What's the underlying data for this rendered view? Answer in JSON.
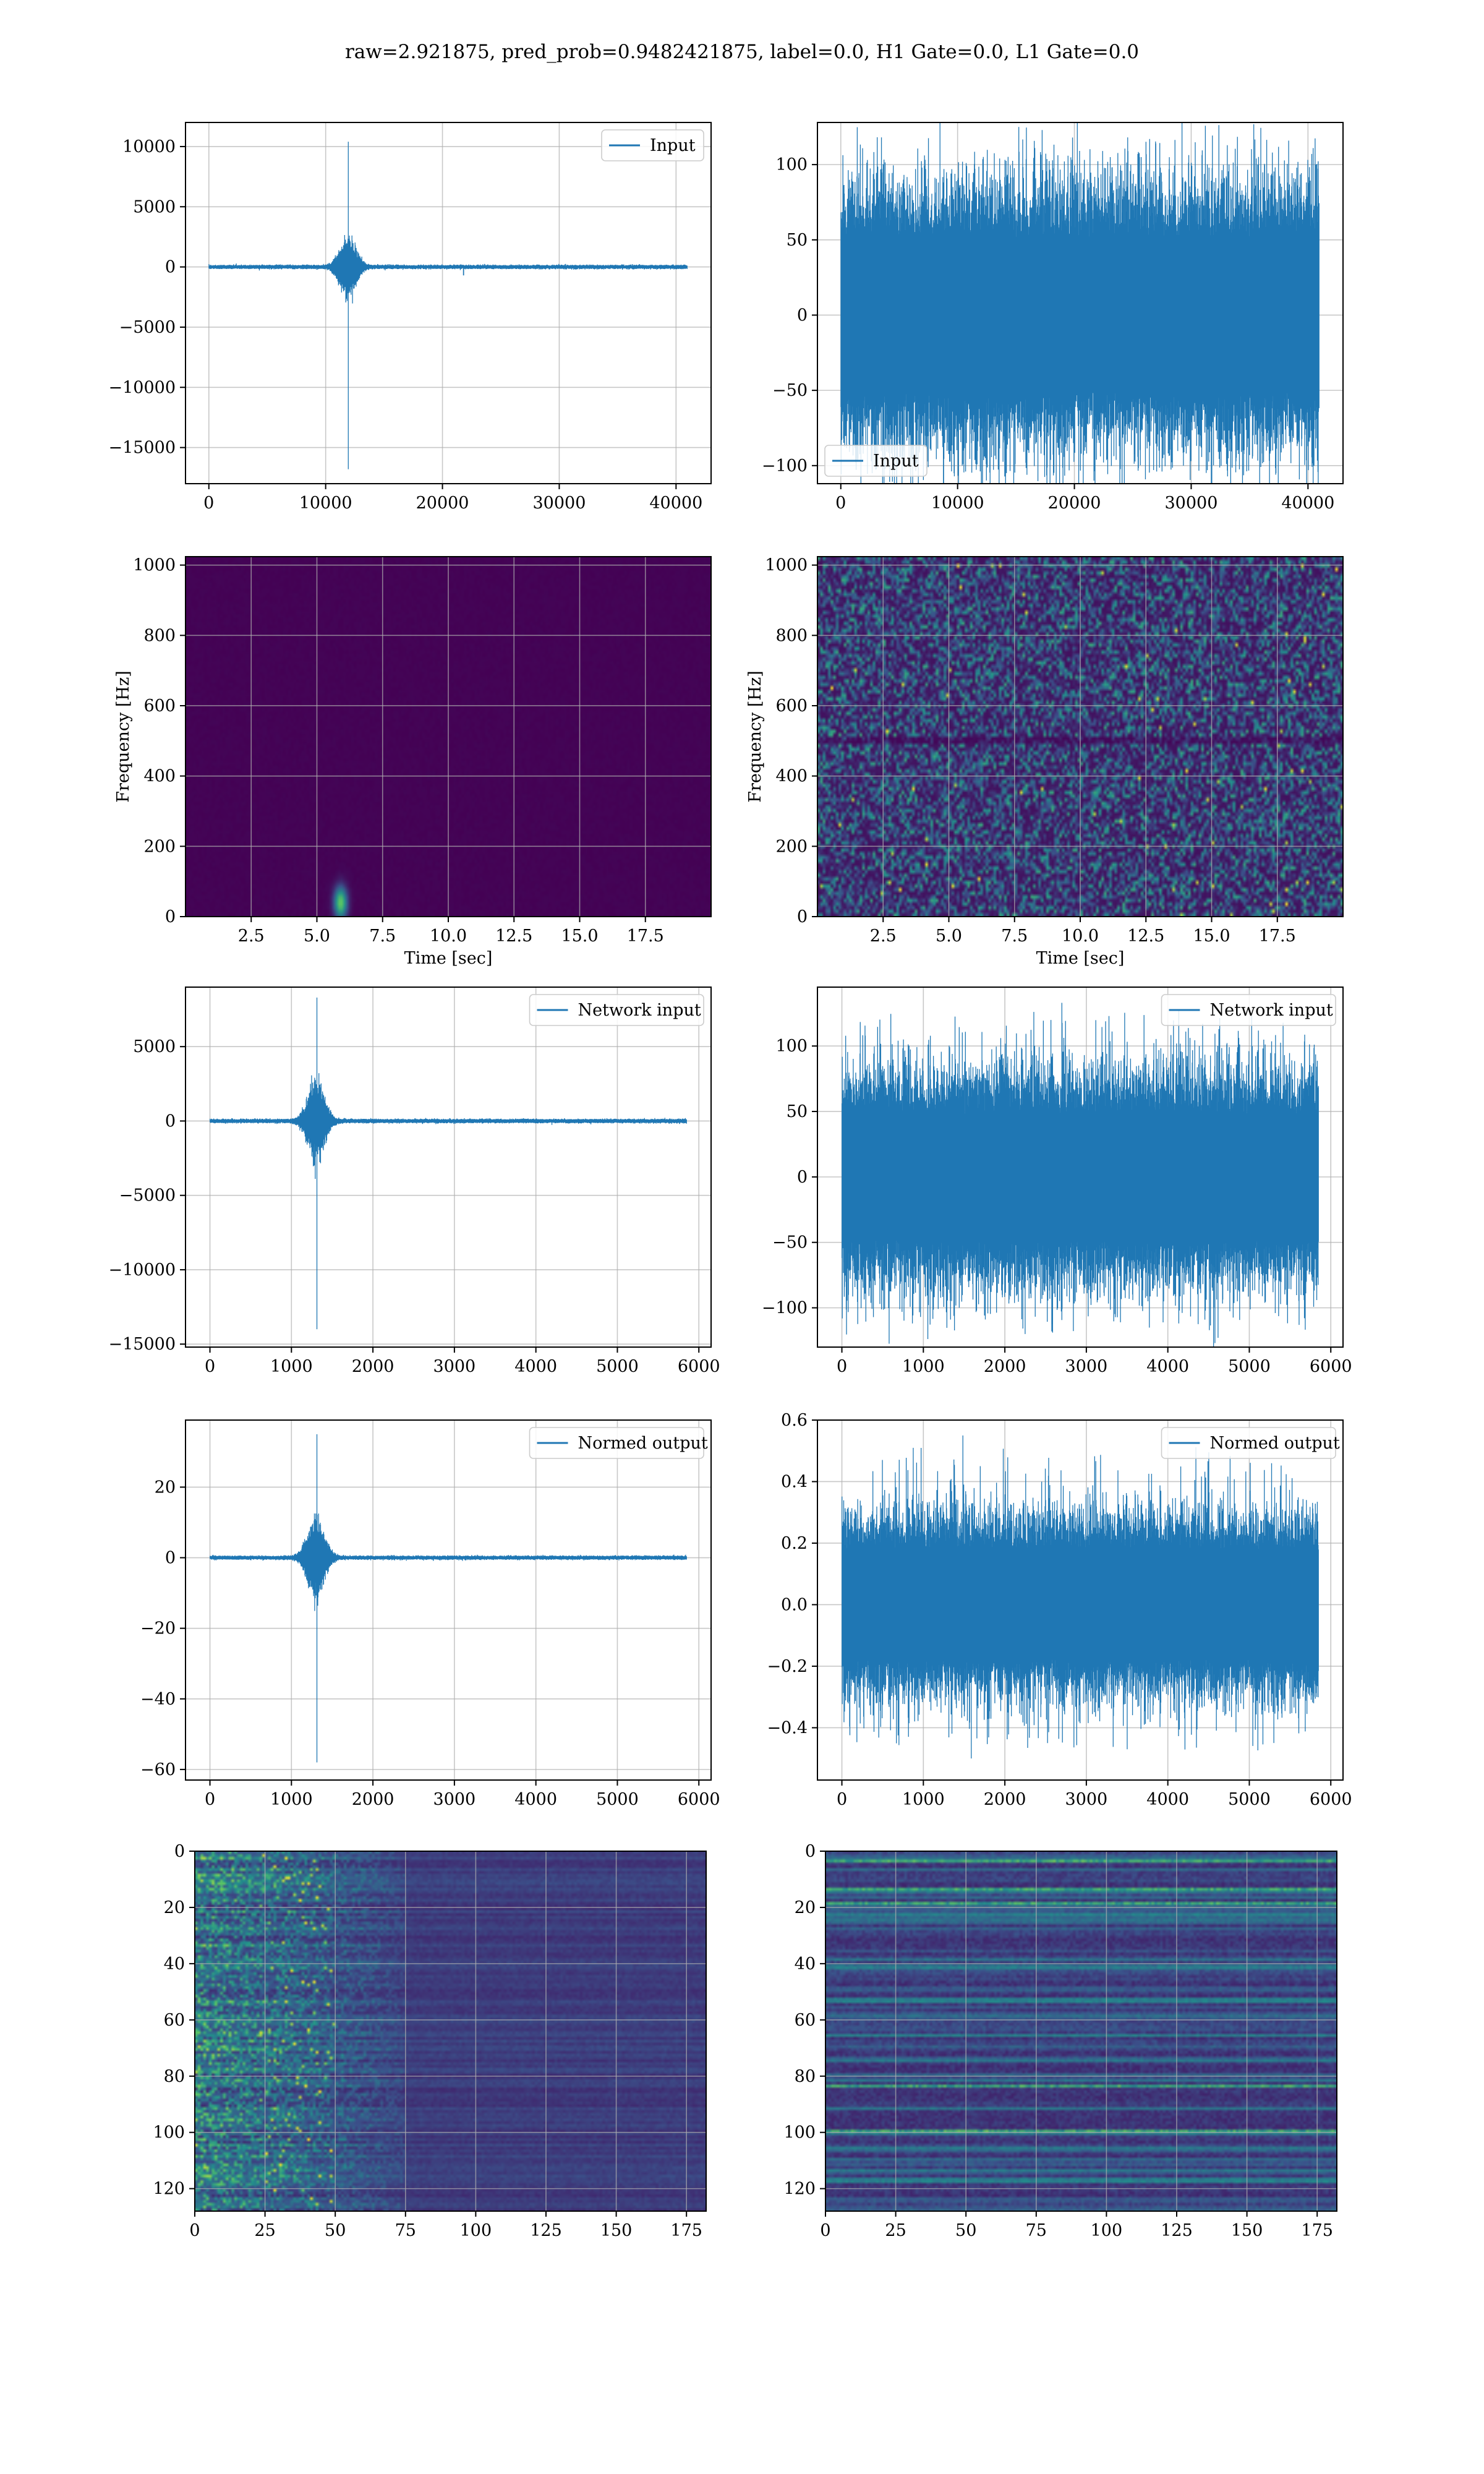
{
  "title": "raw=2.921875, pred_prob=0.9482421875, label=0.0, H1 Gate=0.0, L1 Gate=0.0",
  "colors": {
    "line": "#1f77b4",
    "grid": "#b0b0b0",
    "viridis_low": "#440154",
    "viridis_high": "#fde725"
  },
  "chart_data": [
    {
      "id": "r1-left",
      "type": "line",
      "series": [
        {
          "name": "Input"
        }
      ],
      "legend_loc": "upper right",
      "xlim": [
        -2000,
        43000
      ],
      "ylim": [
        -18000,
        12000
      ],
      "xticks": [
        0,
        10000,
        20000,
        30000,
        40000
      ],
      "xtick_labels": [
        "0",
        "10000",
        "20000",
        "30000",
        "40000"
      ],
      "yticks": [
        10000,
        5000,
        0,
        -5000,
        -10000,
        -15000
      ],
      "ytick_labels": [
        "10000",
        "5000",
        "0",
        "−5000",
        "−10000",
        "−15000"
      ],
      "signal": {
        "length": 40960,
        "noise_amp": 60,
        "burst_center": 11900,
        "burst_width": 900,
        "burst_amp": 900,
        "spike_at": 11920,
        "spike_max": 10400,
        "spike_min": -16800,
        "small_dip_at": 21800,
        "small_dip": -700
      }
    },
    {
      "id": "r1-right",
      "type": "line",
      "series": [
        {
          "name": "Input"
        }
      ],
      "legend_loc": "lower left",
      "xlim": [
        -2000,
        43000
      ],
      "ylim": [
        -112,
        128
      ],
      "xticks": [
        0,
        10000,
        20000,
        30000,
        40000
      ],
      "xtick_labels": [
        "0",
        "10000",
        "20000",
        "30000",
        "40000"
      ],
      "yticks": [
        100,
        50,
        0,
        -50,
        -100
      ],
      "ytick_labels": [
        "100",
        "50",
        "0",
        "−50",
        "−100"
      ],
      "signal": {
        "length": 40960,
        "noise_amp": 32,
        "peak_max": 125,
        "peak_min": -110
      }
    },
    {
      "id": "r2-left",
      "type": "heatmap",
      "xlabel": "Time [sec]",
      "ylabel": "Frequency [Hz]",
      "xlim": [
        0,
        20
      ],
      "ylim": [
        0,
        1024
      ],
      "xticks": [
        2.5,
        5.0,
        7.5,
        10.0,
        12.5,
        15.0,
        17.5
      ],
      "xtick_labels": [
        "2.5",
        "5.0",
        "7.5",
        "10.0",
        "12.5",
        "15.0",
        "17.5"
      ],
      "yticks": [
        0,
        200,
        400,
        600,
        800,
        1000
      ],
      "ytick_labels": [
        "0",
        "200",
        "400",
        "600",
        "800",
        "1000"
      ],
      "blob": {
        "time": 5.9,
        "freq": 40
      }
    },
    {
      "id": "r2-right",
      "type": "heatmap",
      "xlabel": "Time [sec]",
      "ylabel": "Frequency [Hz]",
      "xlim": [
        0,
        20
      ],
      "ylim": [
        0,
        1024
      ],
      "xticks": [
        2.5,
        5.0,
        7.5,
        10.0,
        12.5,
        15.0,
        17.5
      ],
      "xtick_labels": [
        "2.5",
        "5.0",
        "7.5",
        "10.0",
        "12.5",
        "15.0",
        "17.5"
      ],
      "yticks": [
        0,
        200,
        400,
        600,
        800,
        1000
      ],
      "ytick_labels": [
        "0",
        "200",
        "400",
        "600",
        "800",
        "1000"
      ],
      "dark_band_freq": 500
    },
    {
      "id": "r3-left",
      "type": "line",
      "series": [
        {
          "name": "Network input"
        }
      ],
      "legend_loc": "upper right",
      "xlim": [
        -300,
        6150
      ],
      "ylim": [
        -15200,
        9000
      ],
      "xticks": [
        0,
        1000,
        2000,
        3000,
        4000,
        5000,
        6000
      ],
      "xtick_labels": [
        "0",
        "1000",
        "2000",
        "3000",
        "4000",
        "5000",
        "6000"
      ],
      "yticks": [
        5000,
        0,
        -5000,
        -10000,
        -15000
      ],
      "ytick_labels": [
        "5000",
        "0",
        "−5000",
        "−10000",
        "−15000"
      ],
      "signal": {
        "length": 5850,
        "noise_amp": 50,
        "burst_center": 1300,
        "burst_width": 140,
        "burst_amp": 900,
        "spike_at": 1310,
        "spike_max": 8300,
        "spike_min": -14000
      }
    },
    {
      "id": "r3-right",
      "type": "line",
      "series": [
        {
          "name": "Network input"
        }
      ],
      "legend_loc": "upper right",
      "xlim": [
        -300,
        6150
      ],
      "ylim": [
        -130,
        145
      ],
      "xticks": [
        0,
        1000,
        2000,
        3000,
        4000,
        5000,
        6000
      ],
      "xtick_labels": [
        "0",
        "1000",
        "2000",
        "3000",
        "4000",
        "5000",
        "6000"
      ],
      "yticks": [
        100,
        50,
        0,
        -50,
        -100
      ],
      "ytick_labels": [
        "100",
        "50",
        "0",
        "−50",
        "−100"
      ],
      "signal": {
        "length": 5850,
        "noise_amp": 30,
        "peak_max": 133,
        "peak_min": -120
      }
    },
    {
      "id": "r4-left",
      "type": "line",
      "series": [
        {
          "name": "Normed output"
        }
      ],
      "legend_loc": "upper right",
      "xlim": [
        -300,
        6150
      ],
      "ylim": [
        -63,
        39
      ],
      "xticks": [
        0,
        1000,
        2000,
        3000,
        4000,
        5000,
        6000
      ],
      "xtick_labels": [
        "0",
        "1000",
        "2000",
        "3000",
        "4000",
        "5000",
        "6000"
      ],
      "yticks": [
        20,
        0,
        -20,
        -40,
        -60
      ],
      "ytick_labels": [
        "20",
        "0",
        "−20",
        "−40",
        "−60"
      ],
      "signal": {
        "length": 5850,
        "noise_amp": 0.2,
        "burst_center": 1300,
        "burst_width": 140,
        "burst_amp": 4,
        "spike_at": 1310,
        "spike_max": 35,
        "spike_min": -58
      }
    },
    {
      "id": "r4-right",
      "type": "line",
      "series": [
        {
          "name": "Normed output"
        }
      ],
      "legend_loc": "upper right",
      "xlim": [
        -300,
        6150
      ],
      "ylim": [
        -0.57,
        0.6
      ],
      "xticks": [
        0,
        1000,
        2000,
        3000,
        4000,
        5000,
        6000
      ],
      "xtick_labels": [
        "0",
        "1000",
        "2000",
        "3000",
        "4000",
        "5000",
        "6000"
      ],
      "yticks": [
        0.6,
        0.4,
        0.2,
        0.0,
        -0.2,
        -0.4
      ],
      "ytick_labels": [
        "0.6",
        "0.4",
        "0.2",
        "0.0",
        "−0.2",
        "−0.4"
      ],
      "signal": {
        "length": 5850,
        "noise_amp": 0.11,
        "peak_max": 0.55,
        "peak_min": -0.5
      }
    },
    {
      "id": "r5-left",
      "type": "heatmap",
      "xlim": [
        0,
        182
      ],
      "ylim": [
        128,
        0
      ],
      "xticks": [
        0,
        25,
        50,
        75,
        100,
        125,
        150,
        175
      ],
      "xtick_labels": [
        "0",
        "25",
        "50",
        "75",
        "100",
        "125",
        "150",
        "175"
      ],
      "yticks": [
        0,
        20,
        40,
        60,
        80,
        100,
        120
      ],
      "ytick_labels": [
        "0",
        "20",
        "40",
        "60",
        "80",
        "100",
        "120"
      ],
      "active_region_cols": [
        0,
        75
      ]
    },
    {
      "id": "r5-right",
      "type": "heatmap",
      "xlim": [
        0,
        182
      ],
      "ylim": [
        128,
        0
      ],
      "xticks": [
        0,
        25,
        50,
        75,
        100,
        125,
        150,
        175
      ],
      "xtick_labels": [
        "0",
        "25",
        "50",
        "75",
        "100",
        "125",
        "150",
        "175"
      ],
      "yticks": [
        0,
        20,
        40,
        60,
        80,
        100,
        120
      ],
      "ytick_labels": [
        "0",
        "20",
        "40",
        "60",
        "80",
        "100",
        "120"
      ],
      "row_banded": true
    }
  ]
}
